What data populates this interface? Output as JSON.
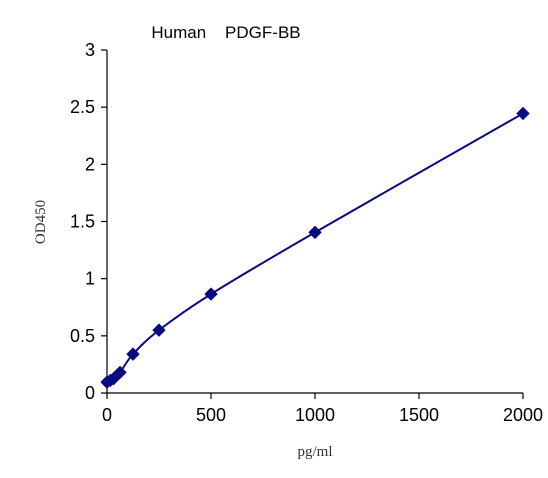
{
  "chart_data": {
    "type": "scatter",
    "title": "Human    PDGF-BB",
    "xlabel": "pg/ml",
    "ylabel": "OD450",
    "xlim": [
      0,
      2000
    ],
    "ylim": [
      0,
      3
    ],
    "xticks": [
      0,
      500,
      1000,
      1500,
      2000
    ],
    "yticks": [
      0,
      0.5,
      1,
      1.5,
      2,
      2.5,
      3
    ],
    "xtick_labels": [
      "0",
      "500",
      "1000",
      "1500",
      "2000"
    ],
    "ytick_labels": [
      "0",
      "0.5",
      "1",
      "1.5",
      "2",
      "2.5",
      "3"
    ],
    "grid": false,
    "series": [
      {
        "x": [
          0,
          15.6,
          31.25,
          62.5,
          125,
          250,
          500,
          1000,
          2000
        ],
        "y": [
          0.095,
          0.11,
          0.125,
          0.18,
          0.34,
          0.55,
          0.865,
          1.405,
          2.445
        ],
        "marker": "diamond",
        "fit": "smooth curve",
        "color": "#0a0a80"
      }
    ]
  }
}
